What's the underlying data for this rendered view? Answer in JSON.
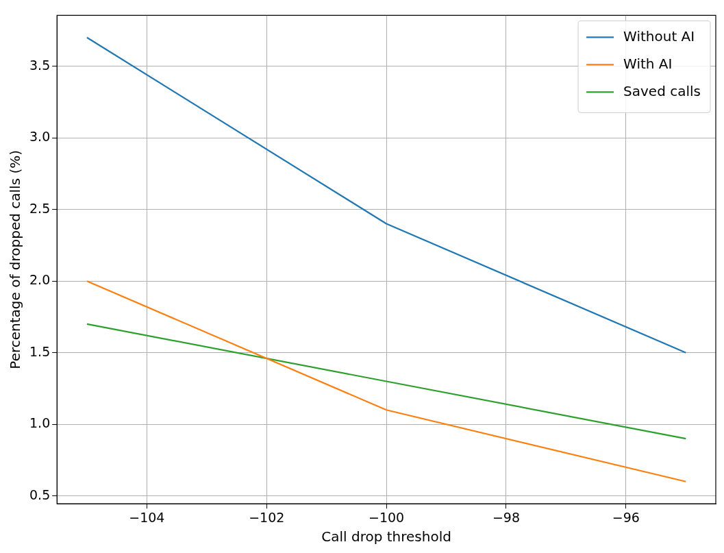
{
  "chart_data": {
    "type": "line",
    "xlabel": "Call drop threshold",
    "ylabel": "Percentage of dropped calls (%)",
    "x": [
      -105,
      -100,
      -95
    ],
    "series": [
      {
        "name": "Without AI",
        "color": "#1f77b4",
        "values": [
          3.7,
          2.4,
          1.5
        ]
      },
      {
        "name": "With AI",
        "color": "#ff7f0e",
        "values": [
          2.0,
          1.1,
          0.6
        ]
      },
      {
        "name": "Saved calls",
        "color": "#2ca02c",
        "values": [
          1.7,
          1.3,
          0.9
        ]
      }
    ],
    "xlim": [
      -105.5,
      -94.5
    ],
    "xticks": [
      {
        "value": -104,
        "label": "−104"
      },
      {
        "value": -102,
        "label": "−102"
      },
      {
        "value": -100,
        "label": "−100"
      },
      {
        "value": -98,
        "label": "−98"
      },
      {
        "value": -96,
        "label": "−96"
      }
    ],
    "ylim": [
      0.445,
      3.855
    ],
    "yticks": [
      {
        "value": 0.5,
        "label": "0.5"
      },
      {
        "value": 1,
        "label": "1.0"
      },
      {
        "value": 1.5,
        "label": "1.5"
      },
      {
        "value": 2,
        "label": "2.0"
      },
      {
        "value": 2.5,
        "label": "2.5"
      },
      {
        "value": 3,
        "label": "3.0"
      },
      {
        "value": 3.5,
        "label": "3.5"
      }
    ],
    "grid": true,
    "legend": "top right",
    "marker": "none",
    "line_style": "solid"
  }
}
